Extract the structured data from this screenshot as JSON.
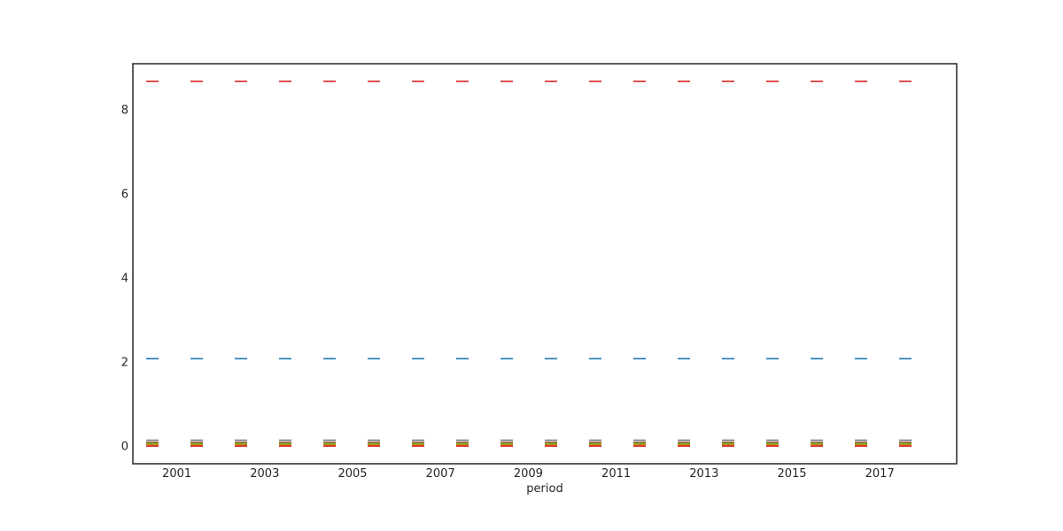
{
  "chart_data": {
    "type": "line",
    "xlabel": "period",
    "ylabel": "",
    "title": "",
    "xlim": [
      2000,
      2018.75
    ],
    "ylim": [
      -0.42,
      9.1
    ],
    "x_ticks": [
      2001,
      2003,
      2005,
      2007,
      2009,
      2011,
      2013,
      2015,
      2017
    ],
    "y_ticks": [
      0,
      2,
      4,
      6,
      8
    ],
    "grid": false,
    "legend": "none",
    "x": [
      2000,
      2001,
      2002,
      2003,
      2004,
      2005,
      2006,
      2007,
      2008,
      2009,
      2010,
      2011,
      2012,
      2013,
      2014,
      2015,
      2016,
      2017,
      2018
    ],
    "series": [
      {
        "color": "#d62728",
        "values": [
          8.68,
          8.68,
          8.68,
          8.68,
          8.68,
          8.68,
          8.68,
          8.68,
          8.68,
          8.68,
          8.68,
          8.68,
          8.68,
          8.68,
          8.68,
          8.68,
          8.68,
          8.68,
          8.68
        ]
      },
      {
        "color": "#1f77b4",
        "values": [
          2.08,
          2.08,
          2.08,
          2.08,
          2.08,
          2.08,
          2.08,
          2.08,
          2.08,
          2.08,
          2.08,
          2.08,
          2.08,
          2.08,
          2.08,
          2.08,
          2.08,
          2.08,
          2.08
        ]
      },
      {
        "color": "#7f7f7f",
        "values": [
          0.14,
          0.14,
          0.14,
          0.14,
          0.14,
          0.14,
          0.14,
          0.14,
          0.14,
          0.14,
          0.14,
          0.14,
          0.14,
          0.14,
          0.14,
          0.14,
          0.14,
          0.14,
          0.14
        ]
      },
      {
        "color": "#8c564b",
        "values": [
          0.09,
          0.09,
          0.09,
          0.09,
          0.09,
          0.09,
          0.09,
          0.09,
          0.09,
          0.09,
          0.09,
          0.09,
          0.09,
          0.09,
          0.09,
          0.09,
          0.09,
          0.09,
          0.09
        ]
      },
      {
        "color": "#bcbd22",
        "values": [
          0.06,
          0.06,
          0.06,
          0.06,
          0.06,
          0.06,
          0.06,
          0.06,
          0.06,
          0.06,
          0.06,
          0.06,
          0.06,
          0.06,
          0.06,
          0.06,
          0.06,
          0.06,
          0.06
        ]
      },
      {
        "color": "#2ca02c",
        "values": [
          0.04,
          0.04,
          0.04,
          0.04,
          0.04,
          0.04,
          0.04,
          0.04,
          0.04,
          0.04,
          0.04,
          0.04,
          0.04,
          0.04,
          0.04,
          0.04,
          0.04,
          0.04,
          0.04
        ]
      },
      {
        "color": "#ff7f0e",
        "values": [
          0.02,
          0.02,
          0.02,
          0.02,
          0.02,
          0.02,
          0.02,
          0.02,
          0.02,
          0.02,
          0.02,
          0.02,
          0.02,
          0.02,
          0.02,
          0.02,
          0.02,
          0.02,
          0.02
        ]
      },
      {
        "color": "#d62728",
        "values": [
          0.0,
          0.0,
          0.0,
          0.0,
          0.0,
          0.0,
          0.0,
          0.0,
          0.0,
          0.0,
          0.0,
          0.0,
          0.0,
          0.0,
          0.0,
          0.0,
          0.0,
          0.0,
          0.0
        ]
      }
    ]
  }
}
